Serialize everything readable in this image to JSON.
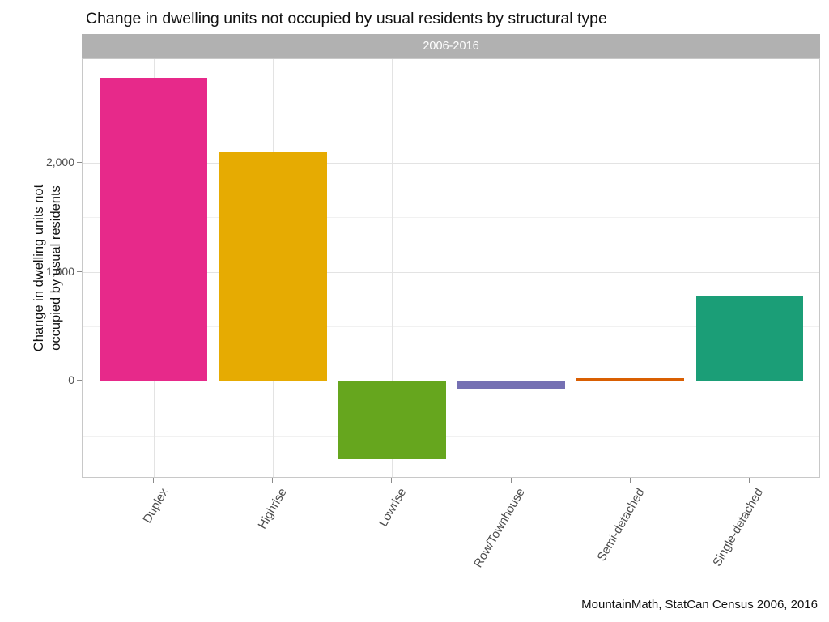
{
  "page": {
    "title": "Change in dwelling units not occupied by usual residents by structural type",
    "caption": "MountainMath, StatCan Census 2006, 2016"
  },
  "chart_data": {
    "type": "bar",
    "title": "Change in dwelling units not occupied by usual residents by structural type",
    "facet_label": "2006-2016",
    "categories": [
      "Duplex",
      "Highrise",
      "Lowrise",
      "Row/Townhouse",
      "Semi-detached",
      "Single-detached"
    ],
    "values": [
      2780,
      2100,
      -720,
      -70,
      25,
      780
    ],
    "bar_colors": [
      "#E7298A",
      "#E6AB02",
      "#66A61E",
      "#7570B3",
      "#D95F02",
      "#1B9E77"
    ],
    "xlabel": "",
    "ylabel": "Change in dwelling units not occupied by usual residents",
    "ylabel_lines": [
      "Change in dwelling units not",
      "occupied by usual residents"
    ],
    "yticks": [
      {
        "value": 0,
        "label": "0"
      },
      {
        "value": 1000,
        "label": "1,000"
      },
      {
        "value": 2000,
        "label": "2,000"
      }
    ],
    "minor_ticks": [
      -500,
      500,
      1500,
      2500
    ],
    "ylim": [
      -895,
      2950
    ],
    "grid": true,
    "legend_position": "none",
    "colors": {
      "strip_bg": "#B1B1B1",
      "strip_text": "#FFFFFF",
      "panel_border": "#C8C8C8",
      "grid_major": "#E3E3E3",
      "grid_minor": "#F1F1F1",
      "tick_mark": "#8A8A8A",
      "tick_label": "#4D4D4D",
      "title_text": "#111111"
    }
  }
}
